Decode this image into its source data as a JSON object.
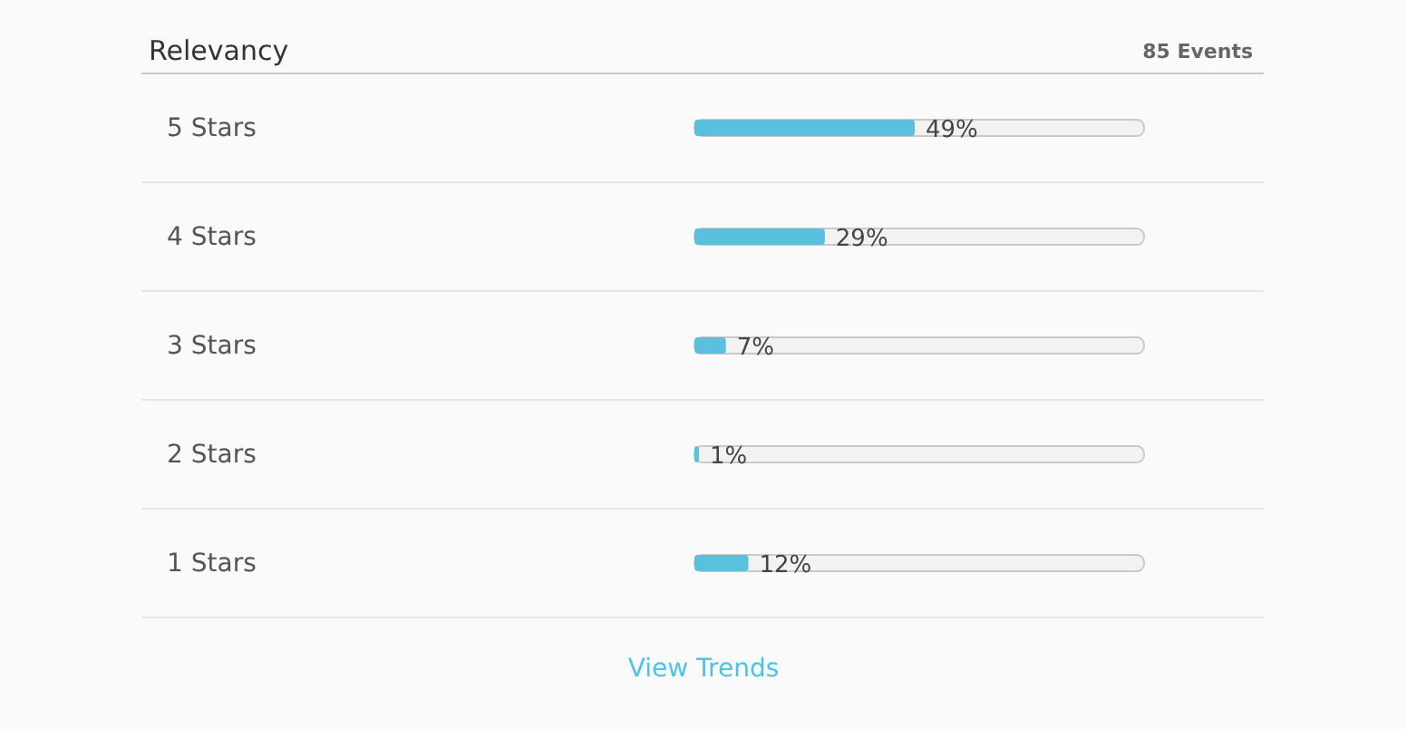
{
  "chart_data": {
    "type": "bar",
    "orientation": "horizontal",
    "title": "Relevancy",
    "subtitle": "85 Events",
    "categories": [
      "5 Stars",
      "4 Stars",
      "3 Stars",
      "2 Stars",
      "1 Stars"
    ],
    "values": [
      49,
      29,
      7,
      1,
      12
    ],
    "value_labels": [
      "49%",
      "29%",
      "7%",
      "1%",
      "12%"
    ],
    "color": "#5bc0de",
    "xlim": [
      0,
      100
    ],
    "tick_labels": "y",
    "annotations": [
      "View Trends"
    ]
  }
}
